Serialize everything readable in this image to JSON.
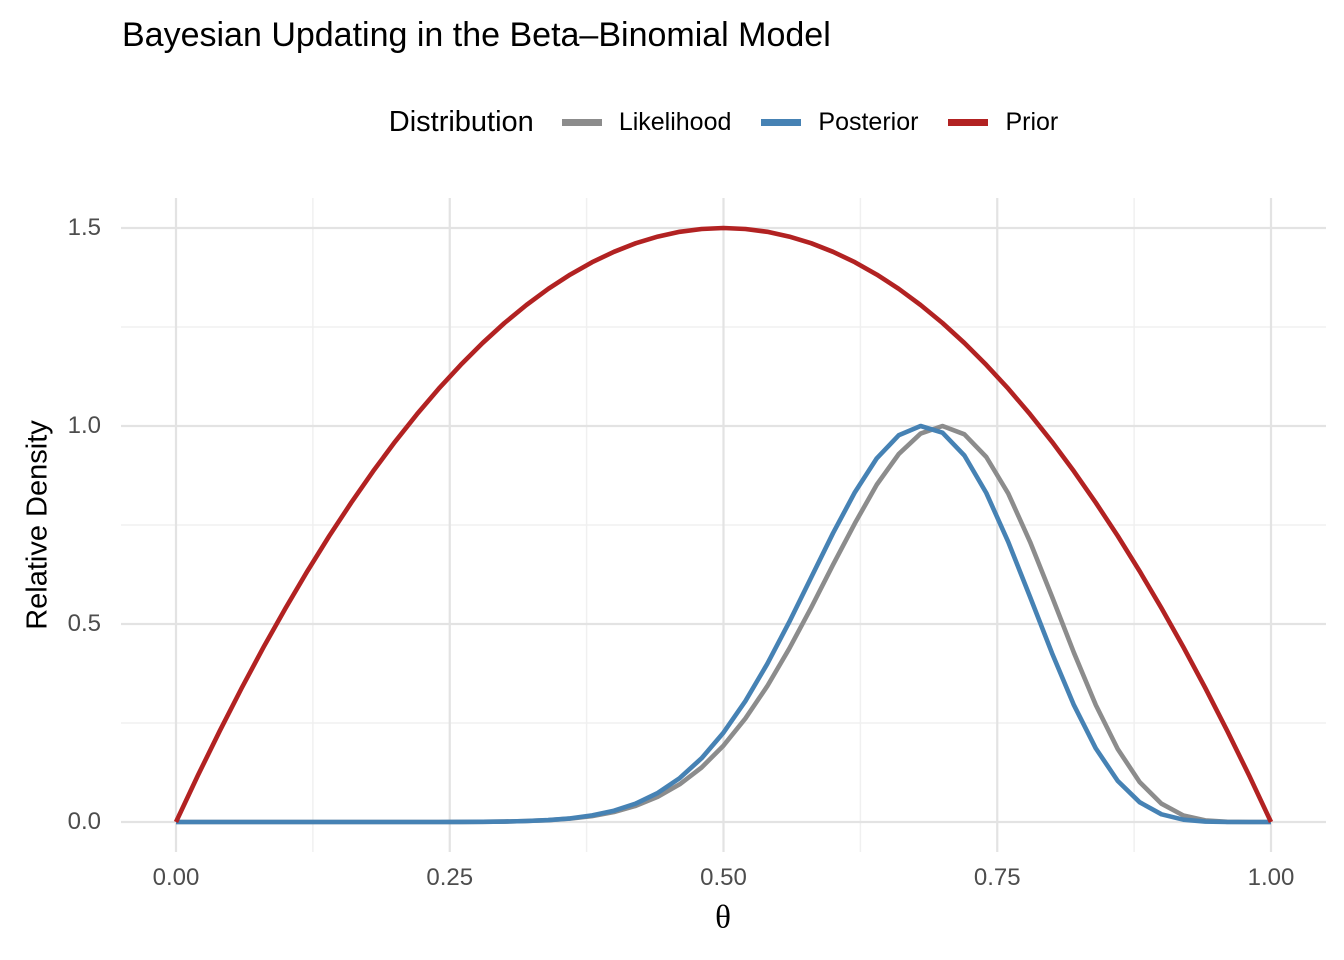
{
  "title": "Bayesian Updating in the Beta–Binomial Model",
  "legend": {
    "title": "Distribution"
  },
  "colors": {
    "background": "#ffffff",
    "grid_major": "#E3E3E3",
    "grid_minor": "#F0F0F0",
    "axis_text": "#4D4D4D",
    "title_text": "#000000",
    "likelihood": "#8C8C8C",
    "posterior": "#4682B4",
    "prior": "#B22222"
  },
  "chart_data": {
    "type": "line",
    "title": "Bayesian Updating in the Beta–Binomial Model",
    "legend_title": "Distribution",
    "legend_position": "top",
    "xlabel": "θ",
    "ylabel": "Relative Density",
    "xlim": [
      0,
      1
    ],
    "ylim": [
      0,
      1.5
    ],
    "grid": true,
    "x_tick_values": [
      0,
      0.25,
      0.5,
      0.75,
      1
    ],
    "x_tick_labels": [
      "0.00",
      "0.25",
      "0.50",
      "0.75",
      "1.00"
    ],
    "x_minor_tick_values": [
      0.125,
      0.375,
      0.625,
      0.875
    ],
    "y_tick_values": [
      0,
      0.5,
      1,
      1.5
    ],
    "y_tick_labels": [
      "0.0",
      "0.5",
      "1.0",
      "1.5"
    ],
    "y_minor_tick_values": [
      0.25,
      0.75,
      1.25
    ],
    "x": [
      0,
      0.02,
      0.04,
      0.06,
      0.08,
      0.1,
      0.12,
      0.14,
      0.16,
      0.18,
      0.2,
      0.22,
      0.24,
      0.26,
      0.28,
      0.3,
      0.32,
      0.34,
      0.36,
      0.38,
      0.4,
      0.42,
      0.44,
      0.46,
      0.48,
      0.5,
      0.52,
      0.54,
      0.56,
      0.58,
      0.6,
      0.62,
      0.64,
      0.66,
      0.68,
      0.7,
      0.72,
      0.74,
      0.76,
      0.78,
      0.8,
      0.82,
      0.84,
      0.86,
      0.88,
      0.9,
      0.92,
      0.94,
      0.96,
      0.98,
      1.0
    ],
    "series": [
      {
        "name": "Likelihood",
        "color": "#8C8C8C",
        "values": [
          0,
          0,
          0,
          0,
          0,
          0,
          0,
          0,
          0,
          0,
          0,
          0,
          0.0001,
          0.0002,
          0.0005,
          0.0011,
          0.0024,
          0.0046,
          0.0085,
          0.015,
          0.0253,
          0.041,
          0.0636,
          0.0952,
          0.1377,
          0.1929,
          0.2617,
          0.3432,
          0.4376,
          0.5409,
          0.6494,
          0.7544,
          0.8519,
          0.929,
          0.9807,
          1.0,
          0.9791,
          0.9218,
          0.8297,
          0.7073,
          0.5693,
          0.4276,
          0.2954,
          0.1844,
          0.1009,
          0.0463,
          0.0165,
          0.004,
          0.0005,
          0,
          0
        ]
      },
      {
        "name": "Posterior",
        "color": "#4682B4",
        "values": [
          0,
          0,
          0,
          0,
          0,
          0,
          0,
          0,
          0,
          0,
          0,
          0,
          0.0001,
          0.0002,
          0.0005,
          0.0011,
          0.0024,
          0.0049,
          0.0092,
          0.0166,
          0.0285,
          0.0467,
          0.0734,
          0.1108,
          0.161,
          0.2257,
          0.3054,
          0.3994,
          0.5049,
          0.6171,
          0.7293,
          0.8328,
          0.9184,
          0.9766,
          1.0,
          0.983,
          0.9254,
          0.8308,
          0.7077,
          0.5683,
          0.4264,
          0.2953,
          0.1859,
          0.1039,
          0.0499,
          0.0195,
          0.0057,
          0.001,
          0.0001,
          0,
          0
        ]
      },
      {
        "name": "Prior",
        "color": "#B22222",
        "values": [
          0,
          0.1176,
          0.2304,
          0.3384,
          0.4416,
          0.54,
          0.6336,
          0.7224,
          0.8064,
          0.8856,
          0.96,
          1.0296,
          1.0944,
          1.1544,
          1.2096,
          1.26,
          1.3056,
          1.3464,
          1.3824,
          1.4136,
          1.44,
          1.4616,
          1.4784,
          1.4904,
          1.4976,
          1.5,
          1.4976,
          1.4904,
          1.4784,
          1.4616,
          1.44,
          1.4136,
          1.3824,
          1.3464,
          1.3056,
          1.26,
          1.2096,
          1.1544,
          1.0944,
          1.0296,
          0.96,
          0.8856,
          0.8064,
          0.7224,
          0.6336,
          0.54,
          0.4416,
          0.3384,
          0.2304,
          0.1176,
          0
        ]
      }
    ]
  }
}
